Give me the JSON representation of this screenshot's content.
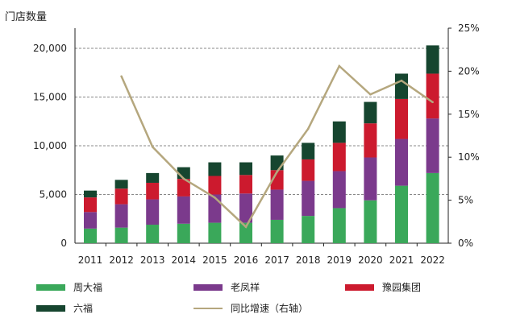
{
  "chart_data": {
    "type": "bar",
    "stacked": true,
    "title": "",
    "ylabel": "门店数量",
    "y2label": "",
    "categories": [
      "2011",
      "2012",
      "2013",
      "2014",
      "2015",
      "2016",
      "2017",
      "2018",
      "2019",
      "2020",
      "2021",
      "2022"
    ],
    "series": [
      {
        "name": "周大福",
        "color": "#3aa85a",
        "values": [
          1500,
          1600,
          1900,
          2000,
          2100,
          2100,
          2400,
          2800,
          3600,
          4400,
          5900,
          7200
        ]
      },
      {
        "name": "老凤祥",
        "color": "#7b3a8c",
        "values": [
          1700,
          2400,
          2600,
          2800,
          2900,
          3000,
          3100,
          3600,
          3800,
          4400,
          4800,
          5600
        ]
      },
      {
        "name": "豫园集团",
        "color": "#cc1a2e",
        "values": [
          1500,
          1600,
          1700,
          1800,
          1900,
          1900,
          2000,
          2200,
          2900,
          3500,
          4100,
          4600
        ]
      },
      {
        "name": "六福",
        "color": "#16452f",
        "values": [
          700,
          900,
          1000,
          1200,
          1400,
          1300,
          1500,
          1700,
          2200,
          2200,
          2600,
          2900
        ]
      }
    ],
    "line_series": {
      "name": "同比增速（右轴）",
      "color": "#b5a77e",
      "axis": "right",
      "values": [
        null,
        19.4,
        11.2,
        7.5,
        5.3,
        1.9,
        8.3,
        13.3,
        20.6,
        17.3,
        18.9,
        16.4
      ]
    },
    "ylim": [
      0,
      20000
    ],
    "yticks": [
      "0",
      "5,000",
      "10,000",
      "15,000",
      "20,000"
    ],
    "y2lim": [
      0,
      25
    ],
    "y2ticks": [
      "0%",
      "5%",
      "10%",
      "15%",
      "20%",
      "25%"
    ],
    "grid": "horizontal dashed",
    "legend": "bottom"
  }
}
